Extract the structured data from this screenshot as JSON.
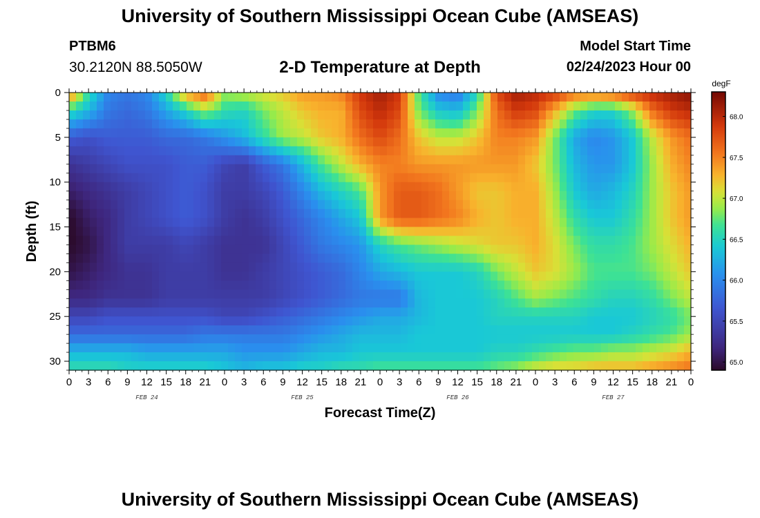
{
  "header": {
    "title": "University of Southern Mississippi Ocean Cube (AMSEAS)",
    "station": "PTBM6",
    "coordinates": "30.2120N  88.5050W",
    "subtitle": "2-D Temperature at Depth",
    "model_start_label": "Model Start Time",
    "model_start_value": "02/24/2023 Hour 00"
  },
  "footer": {
    "title": "University of Southern Mississippi Ocean Cube (AMSEAS)"
  },
  "chart_data": {
    "type": "heatmap",
    "xlabel": "Forecast Time(Z)",
    "ylabel": "Depth (ft)",
    "x_tick_labels": [
      "0",
      "3",
      "6",
      "9",
      "12",
      "15",
      "18",
      "21",
      "0",
      "3",
      "6",
      "9",
      "12",
      "15",
      "18",
      "21",
      "0",
      "3",
      "6",
      "9",
      "12",
      "15",
      "18",
      "21",
      "0",
      "3",
      "6",
      "9",
      "12",
      "15",
      "18",
      "21",
      "0"
    ],
    "x_range_hours": [
      0,
      96
    ],
    "day_labels": [
      {
        "label": "FEB 24",
        "hour": 12
      },
      {
        "label": "FEB 25",
        "hour": 36
      },
      {
        "label": "FEB 26",
        "hour": 60
      },
      {
        "label": "FEB 27",
        "hour": 84
      }
    ],
    "y_ticks": [
      0,
      5,
      10,
      15,
      20,
      25,
      30
    ],
    "y_tick_labels": [
      "0",
      "5",
      "10",
      "15",
      "20",
      "25",
      "30"
    ],
    "y_range_ft": [
      0,
      31
    ],
    "colorbar": {
      "unit": "degF",
      "range": [
        64.9,
        68.3
      ],
      "ticks": [
        65.0,
        65.5,
        66.0,
        66.5,
        67.0,
        67.5,
        68.0
      ],
      "tick_labels": [
        "65.0",
        "65.5",
        "66.0",
        "66.5",
        "67.0",
        "67.5",
        "68.0"
      ]
    },
    "z_depths_ft": [
      0,
      2,
      5,
      8,
      11,
      14,
      17,
      20,
      23,
      25,
      27,
      29,
      31
    ],
    "z_times_hours": [
      0,
      3,
      6,
      9,
      12,
      15,
      18,
      21,
      24,
      27,
      30,
      33,
      36,
      39,
      42,
      45,
      48,
      51,
      54,
      57,
      60,
      63,
      66,
      69,
      72,
      75,
      78,
      81,
      84,
      87,
      90,
      93,
      96
    ],
    "z_values": [
      [
        67.6,
        66.6,
        66.0,
        65.9,
        66.0,
        66.5,
        67.4,
        67.7,
        66.9,
        67.0,
        67.1,
        67.2,
        67.4,
        67.4,
        67.5,
        67.9,
        68.1,
        67.9,
        66.7,
        66.0,
        65.9,
        66.5,
        67.8,
        68.1,
        68.0,
        67.9,
        67.6,
        67.6,
        67.7,
        67.9,
        68.0,
        68.1,
        68.2
      ],
      [
        66.6,
        66.3,
        65.9,
        65.8,
        65.9,
        66.2,
        66.5,
        66.9,
        66.6,
        66.5,
        66.8,
        67.0,
        67.2,
        67.3,
        67.3,
        67.8,
        68.0,
        67.8,
        66.8,
        66.4,
        66.3,
        66.8,
        67.6,
        67.9,
        67.8,
        67.3,
        66.8,
        66.5,
        66.5,
        66.9,
        67.6,
        67.9,
        68.0
      ],
      [
        65.7,
        65.6,
        65.7,
        65.7,
        65.7,
        65.8,
        65.8,
        65.9,
        66.1,
        66.3,
        66.6,
        66.9,
        67.0,
        67.2,
        67.3,
        67.6,
        67.8,
        67.6,
        67.2,
        67.0,
        67.0,
        67.2,
        67.5,
        67.5,
        67.4,
        66.8,
        66.2,
        66.0,
        66.1,
        66.4,
        67.0,
        67.4,
        67.6
      ],
      [
        65.3,
        65.4,
        65.5,
        65.6,
        65.6,
        65.6,
        65.7,
        65.7,
        65.5,
        65.4,
        65.7,
        65.9,
        66.3,
        66.7,
        67.0,
        67.3,
        67.5,
        67.5,
        67.4,
        67.4,
        67.4,
        67.4,
        67.4,
        67.4,
        67.2,
        66.8,
        66.3,
        66.1,
        66.1,
        66.4,
        66.9,
        67.3,
        67.5
      ],
      [
        65.1,
        65.2,
        65.3,
        65.4,
        65.5,
        65.6,
        65.7,
        65.6,
        65.4,
        65.4,
        65.5,
        65.7,
        66.0,
        66.3,
        66.5,
        66.7,
        67.4,
        67.7,
        67.7,
        67.6,
        67.4,
        67.2,
        67.2,
        67.3,
        67.3,
        66.9,
        66.4,
        66.2,
        66.3,
        66.5,
        66.9,
        67.2,
        67.4
      ],
      [
        64.9,
        65.1,
        65.2,
        65.4,
        65.5,
        65.6,
        65.7,
        65.6,
        65.4,
        65.3,
        65.4,
        65.6,
        65.8,
        66.0,
        66.2,
        66.4,
        67.4,
        67.7,
        67.7,
        67.6,
        67.5,
        67.3,
        67.2,
        67.3,
        67.3,
        67.0,
        66.6,
        66.4,
        66.4,
        66.6,
        66.9,
        67.2,
        67.4
      ],
      [
        64.9,
        65.0,
        65.2,
        65.4,
        65.4,
        65.4,
        65.5,
        65.4,
        65.3,
        65.3,
        65.3,
        65.5,
        65.7,
        65.9,
        66.0,
        66.1,
        66.5,
        66.7,
        66.8,
        66.9,
        67.0,
        67.1,
        67.2,
        67.2,
        67.3,
        67.1,
        66.8,
        66.6,
        66.6,
        66.7,
        66.9,
        67.1,
        67.3
      ],
      [
        65.0,
        65.1,
        65.2,
        65.3,
        65.3,
        65.4,
        65.4,
        65.4,
        65.3,
        65.3,
        65.4,
        65.5,
        65.6,
        65.7,
        65.8,
        66.0,
        66.2,
        66.3,
        66.4,
        66.4,
        66.4,
        66.5,
        66.8,
        67.0,
        67.2,
        67.1,
        66.9,
        66.7,
        66.7,
        66.7,
        66.8,
        67.0,
        67.2
      ],
      [
        65.2,
        65.2,
        65.3,
        65.3,
        65.3,
        65.4,
        65.4,
        65.4,
        65.4,
        65.4,
        65.4,
        65.5,
        65.6,
        65.7,
        65.8,
        65.9,
        65.9,
        65.9,
        66.3,
        66.4,
        66.4,
        66.4,
        66.5,
        66.7,
        66.9,
        66.8,
        66.7,
        66.6,
        66.5,
        66.5,
        66.6,
        66.8,
        67.0
      ],
      [
        65.5,
        65.5,
        65.6,
        65.6,
        65.6,
        65.6,
        65.6,
        65.6,
        65.5,
        65.5,
        65.6,
        65.7,
        65.8,
        65.9,
        66.0,
        66.1,
        66.2,
        66.2,
        66.3,
        66.4,
        66.4,
        66.4,
        66.5,
        66.5,
        66.5,
        66.5,
        66.5,
        66.4,
        66.4,
        66.4,
        66.5,
        66.6,
        66.8
      ],
      [
        65.8,
        65.8,
        65.8,
        65.8,
        65.8,
        65.8,
        65.8,
        65.9,
        65.9,
        65.9,
        65.9,
        65.9,
        66.0,
        66.1,
        66.2,
        66.3,
        66.3,
        66.3,
        66.4,
        66.4,
        66.4,
        66.4,
        66.4,
        66.4,
        66.4,
        66.4,
        66.4,
        66.4,
        66.4,
        66.5,
        66.6,
        66.7,
        66.9
      ],
      [
        66.3,
        66.3,
        66.3,
        66.3,
        66.2,
        66.2,
        66.2,
        66.2,
        66.2,
        66.1,
        66.1,
        66.1,
        66.2,
        66.3,
        66.3,
        66.4,
        66.4,
        66.4,
        66.4,
        66.4,
        66.4,
        66.4,
        66.5,
        66.5,
        66.6,
        66.7,
        66.8,
        66.8,
        66.9,
        66.9,
        67.0,
        67.1,
        67.3
      ],
      [
        66.6,
        66.6,
        66.6,
        66.5,
        66.5,
        66.5,
        66.5,
        66.5,
        66.4,
        66.3,
        66.4,
        66.4,
        66.5,
        66.5,
        66.6,
        66.6,
        66.7,
        66.7,
        66.7,
        66.7,
        66.7,
        66.7,
        66.8,
        66.9,
        67.1,
        67.2,
        67.2,
        67.3,
        67.3,
        67.3,
        67.4,
        67.5,
        67.6
      ]
    ]
  }
}
